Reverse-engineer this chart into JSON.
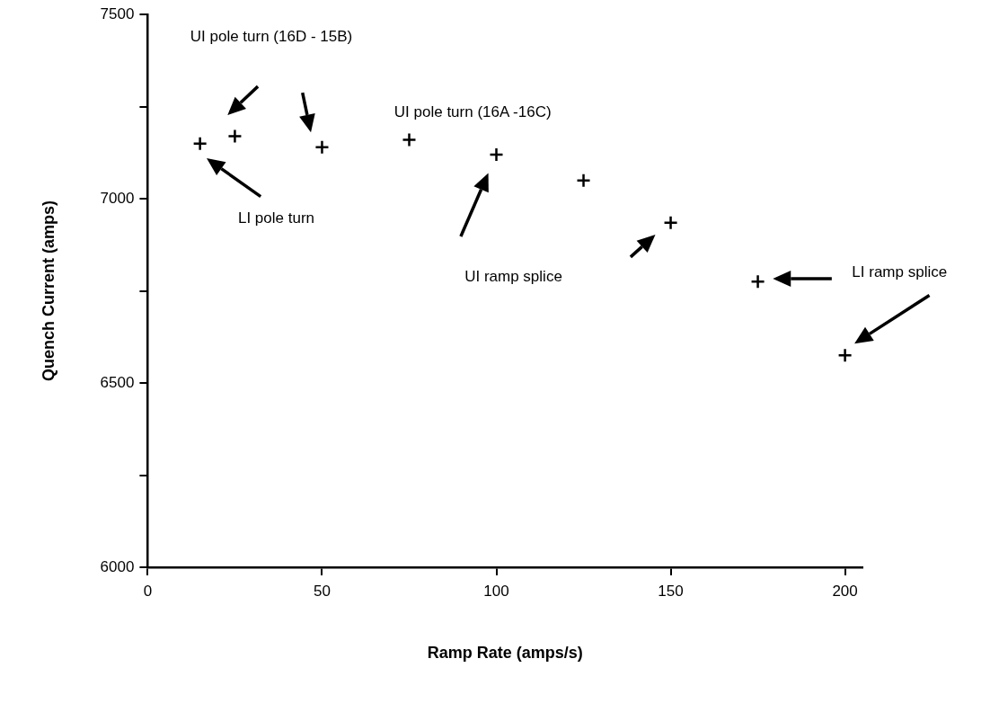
{
  "chart_data": {
    "type": "scatter",
    "xlabel": "Ramp Rate (amps/s)",
    "ylabel": "Quench Current (amps)",
    "x": [
      15,
      25,
      50,
      75,
      100,
      125,
      150,
      175,
      200
    ],
    "series": [
      {
        "color": "#000000",
        "values": [
          7150,
          7170,
          7140,
          7160,
          7120,
          7050,
          6935,
          6775,
          6575
        ]
      }
    ],
    "xlim": [
      0,
      205
    ],
    "xticks": [
      0,
      50,
      100,
      150,
      200
    ],
    "ylim": [
      6000,
      7500
    ],
    "yticks": [
      6000,
      {
        "value": 6250,
        "label": null
      },
      6500,
      {
        "value": 6750,
        "label": null
      },
      7000,
      {
        "value": 7250,
        "label": null
      },
      7500
    ],
    "marker": "cross",
    "grid": false,
    "legend": false,
    "annotations": [
      "UI pole turn (16D - 15B)",
      "LI pole turn",
      "UI pole turn (16A -16C)",
      "UI ramp splice",
      "LI ramp splice"
    ]
  }
}
